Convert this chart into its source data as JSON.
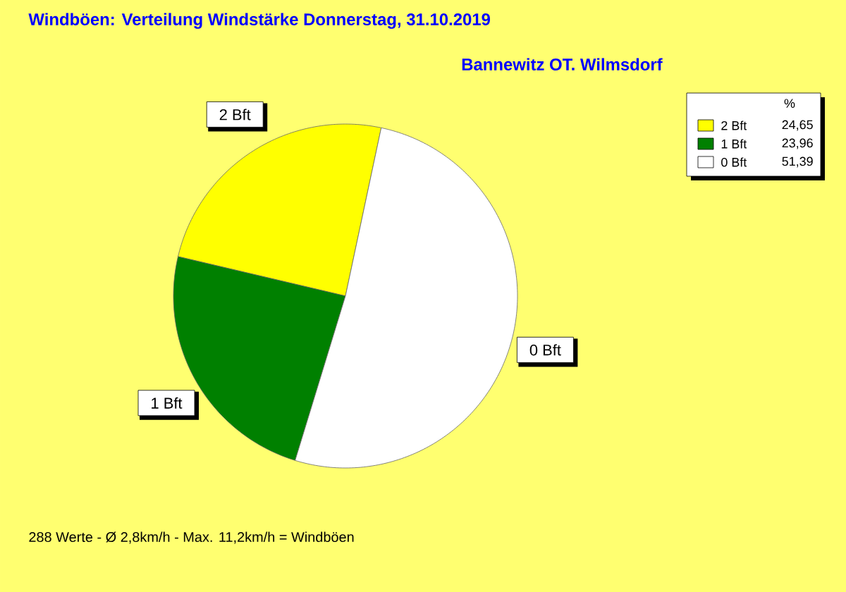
{
  "chart_data": {
    "type": "pie",
    "title": "Windböen: Verteilung Windstärke  Donnerstag, 31.10.2019",
    "subtitle": "Bannewitz OT. Wilmsdorf",
    "categories": [
      "2 Bft",
      "1 Bft",
      "0 Bft"
    ],
    "values": [
      24.65,
      23.96,
      51.39
    ],
    "value_labels": [
      "24,65",
      "23,96",
      "51,39"
    ],
    "colors": [
      "#ffff00",
      "#008000",
      "#ffffff"
    ],
    "legend": "top right",
    "legend_title": "%",
    "annotations": [
      "288 Werte   -   Ø 2,8km/h  -  Max. 11,2km/h = Windböen"
    ]
  }
}
